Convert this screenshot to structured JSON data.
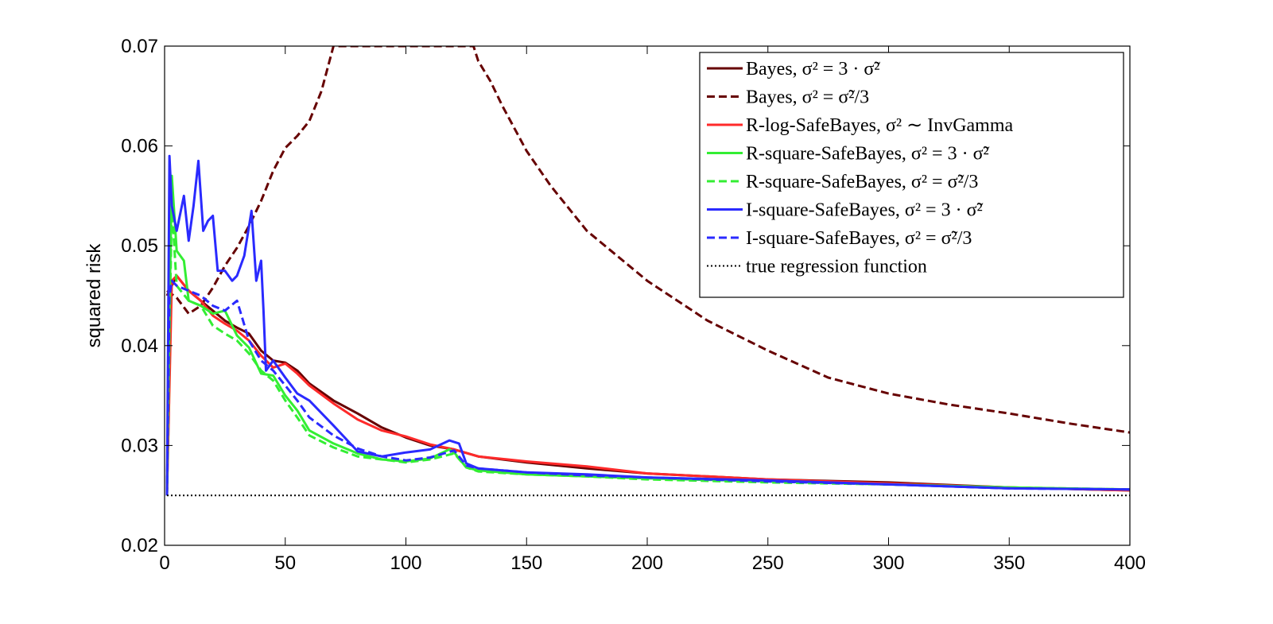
{
  "chart_data": {
    "type": "line",
    "title": "",
    "xlabel": "",
    "ylabel": "squared risk",
    "xlim": [
      0,
      400
    ],
    "ylim": [
      0.02,
      0.07
    ],
    "xticks": [
      0,
      50,
      100,
      150,
      200,
      250,
      300,
      350,
      400
    ],
    "yticks": [
      0.02,
      0.03,
      0.04,
      0.05,
      0.06,
      0.07
    ],
    "xtick_labels": [
      "0",
      "50",
      "100",
      "150",
      "200",
      "250",
      "300",
      "350",
      "400"
    ],
    "ytick_labels": [
      "0.02",
      "0.03",
      "0.04",
      "0.05",
      "0.06",
      "0.07"
    ],
    "grid": false,
    "legend_position": "top-right",
    "series": [
      {
        "name": "bayes-var-3x",
        "label": "Bayes, σ² = 3 · σ̃²",
        "color": "#660000",
        "dash": "solid",
        "x": [
          1,
          5,
          10,
          15,
          20,
          25,
          30,
          35,
          40,
          45,
          50,
          55,
          60,
          70,
          80,
          90,
          100,
          110,
          120,
          130,
          150,
          175,
          200,
          250,
          300,
          350,
          400
        ],
        "y": [
          0.045,
          0.047,
          0.0455,
          0.0445,
          0.0435,
          0.0425,
          0.0418,
          0.0412,
          0.0395,
          0.0385,
          0.0383,
          0.0375,
          0.0362,
          0.0345,
          0.0332,
          0.0318,
          0.0308,
          0.03,
          0.0296,
          0.0289,
          0.0283,
          0.0277,
          0.0272,
          0.0266,
          0.0263,
          0.0258,
          0.0255
        ]
      },
      {
        "name": "bayes-var-third",
        "label": "Bayes, σ² = σ̃²/3",
        "color": "#660000",
        "dash": "dashed",
        "x": [
          1,
          5,
          10,
          15,
          20,
          25,
          30,
          35,
          40,
          45,
          50,
          55,
          60,
          65,
          70,
          128,
          130,
          135,
          140,
          150,
          160,
          175,
          200,
          225,
          250,
          275,
          300,
          325,
          350,
          375,
          400
        ],
        "y": [
          0.0455,
          0.0448,
          0.0432,
          0.044,
          0.0458,
          0.048,
          0.0498,
          0.052,
          0.0545,
          0.0575,
          0.0598,
          0.061,
          0.0625,
          0.0655,
          0.07,
          0.07,
          0.0685,
          0.0665,
          0.064,
          0.0595,
          0.056,
          0.0515,
          0.0465,
          0.0425,
          0.0395,
          0.0368,
          0.0352,
          0.0341,
          0.0332,
          0.0322,
          0.0313
        ]
      },
      {
        "name": "r-log-safebayes",
        "label": "R-log-SafeBayes, σ² ∼ InvGamma",
        "color": "#ff2a2a",
        "dash": "solid",
        "x": [
          1,
          3,
          5,
          10,
          15,
          20,
          25,
          30,
          35,
          40,
          45,
          50,
          55,
          60,
          70,
          80,
          90,
          100,
          110,
          120,
          130,
          150,
          175,
          200,
          250,
          300,
          350,
          400
        ],
        "y": [
          0.025,
          0.0465,
          0.047,
          0.0455,
          0.0445,
          0.043,
          0.0422,
          0.0415,
          0.0405,
          0.039,
          0.0378,
          0.0382,
          0.0372,
          0.036,
          0.0342,
          0.0326,
          0.0315,
          0.0309,
          0.0301,
          0.0296,
          0.0289,
          0.0284,
          0.0279,
          0.0272,
          0.0266,
          0.0262,
          0.0258,
          0.0255
        ]
      },
      {
        "name": "r-square-safebayes-3x",
        "label": "R-square-SafeBayes, σ² = 3 · σ̃²",
        "color": "#33ee33",
        "dash": "solid",
        "x": [
          1,
          2,
          3,
          5,
          8,
          10,
          15,
          20,
          25,
          30,
          35,
          40,
          45,
          50,
          55,
          60,
          70,
          80,
          90,
          100,
          110,
          118,
          120,
          125,
          130,
          150,
          175,
          200,
          250,
          300,
          350,
          400
        ],
        "y": [
          0.025,
          0.043,
          0.057,
          0.0495,
          0.0485,
          0.0445,
          0.044,
          0.0432,
          0.0435,
          0.041,
          0.0398,
          0.0372,
          0.037,
          0.035,
          0.0335,
          0.0315,
          0.0302,
          0.0292,
          0.0286,
          0.0284,
          0.0287,
          0.0296,
          0.0293,
          0.0278,
          0.0275,
          0.0271,
          0.0269,
          0.0267,
          0.0264,
          0.0261,
          0.0258,
          0.0256
        ]
      },
      {
        "name": "r-square-safebayes-third",
        "label": "R-square-SafeBayes, σ² = σ̃²/3",
        "color": "#33ee33",
        "dash": "dashed",
        "x": [
          1,
          2,
          3,
          5,
          10,
          15,
          20,
          25,
          30,
          35,
          40,
          45,
          50,
          55,
          60,
          70,
          80,
          90,
          100,
          110,
          120,
          125,
          130,
          150,
          175,
          200,
          250,
          300,
          350,
          400
        ],
        "y": [
          0.025,
          0.041,
          0.054,
          0.046,
          0.0445,
          0.044,
          0.042,
          0.0412,
          0.0405,
          0.0392,
          0.0375,
          0.0365,
          0.0345,
          0.0328,
          0.031,
          0.0298,
          0.0289,
          0.0286,
          0.0283,
          0.0286,
          0.0292,
          0.0278,
          0.0274,
          0.0271,
          0.0269,
          0.0266,
          0.0263,
          0.0261,
          0.0258,
          0.0256
        ]
      },
      {
        "name": "i-square-safebayes-3x",
        "label": "I-square-SafeBayes, σ² = 3 · σ̃²",
        "color": "#2a2aff",
        "dash": "solid",
        "x": [
          1,
          2,
          3,
          5,
          8,
          10,
          12,
          14,
          16,
          18,
          20,
          22,
          25,
          28,
          30,
          33,
          36,
          38,
          40,
          41,
          42,
          45,
          50,
          55,
          60,
          70,
          80,
          90,
          100,
          110,
          118,
          122,
          125,
          130,
          150,
          175,
          200,
          250,
          300,
          350,
          400
        ],
        "y": [
          0.025,
          0.059,
          0.054,
          0.0515,
          0.055,
          0.0505,
          0.054,
          0.0585,
          0.0515,
          0.0525,
          0.053,
          0.0475,
          0.0475,
          0.0465,
          0.047,
          0.049,
          0.0535,
          0.0465,
          0.0485,
          0.0435,
          0.0375,
          0.0385,
          0.0368,
          0.0352,
          0.0345,
          0.032,
          0.0294,
          0.0289,
          0.0293,
          0.0296,
          0.0305,
          0.0302,
          0.0282,
          0.0277,
          0.0273,
          0.0271,
          0.0268,
          0.0265,
          0.0261,
          0.0257,
          0.0256
        ]
      },
      {
        "name": "i-square-safebayes-third",
        "label": "I-square-SafeBayes, σ² = σ̃²/3",
        "color": "#2a2aff",
        "dash": "dashed",
        "x": [
          1,
          2,
          3,
          5,
          10,
          15,
          20,
          25,
          30,
          35,
          40,
          45,
          50,
          55,
          60,
          70,
          80,
          90,
          100,
          110,
          120,
          125,
          130,
          150,
          175,
          200,
          250,
          300,
          350,
          400
        ],
        "y": [
          0.025,
          0.045,
          0.0465,
          0.046,
          0.0455,
          0.045,
          0.044,
          0.0435,
          0.0445,
          0.0405,
          0.0385,
          0.0375,
          0.036,
          0.0345,
          0.0328,
          0.031,
          0.0297,
          0.0289,
          0.0285,
          0.0288,
          0.0295,
          0.028,
          0.0277,
          0.0273,
          0.027,
          0.0268,
          0.0264,
          0.0261,
          0.0257,
          0.0256
        ]
      },
      {
        "name": "true-regression",
        "label": "true regression function",
        "color": "#000000",
        "dash": "dotted",
        "x": [
          1,
          400
        ],
        "y": [
          0.025,
          0.025
        ]
      }
    ]
  }
}
